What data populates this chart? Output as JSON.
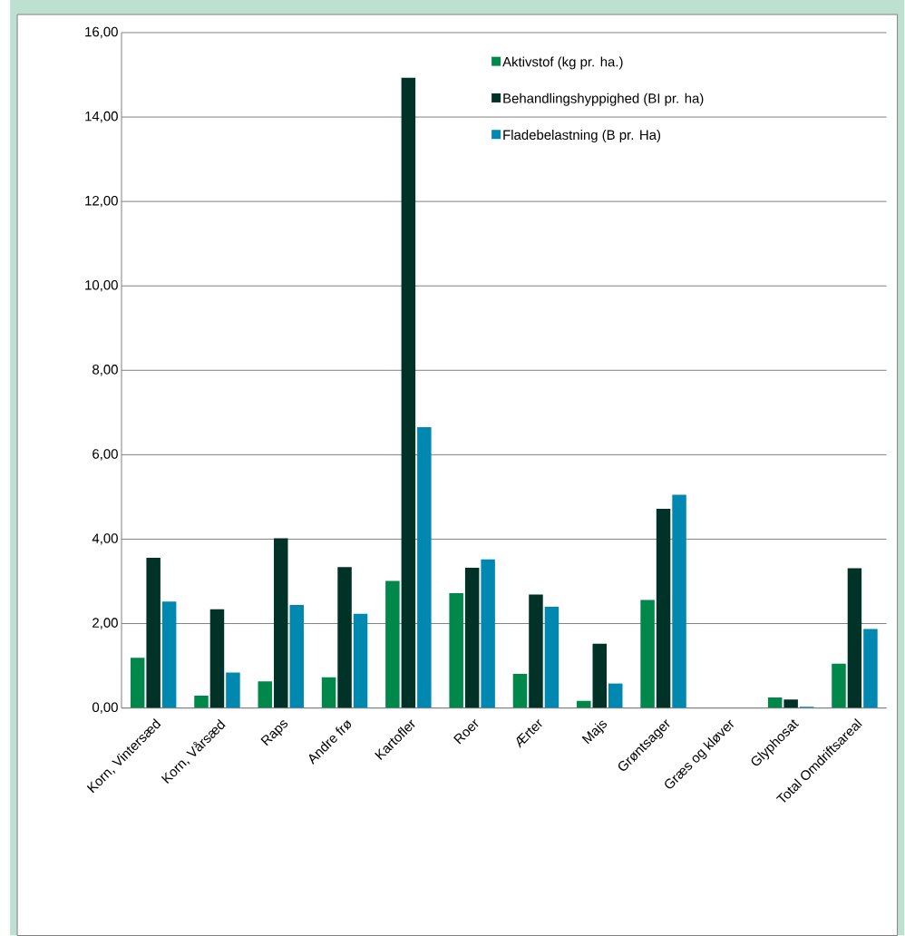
{
  "chart_data": {
    "type": "bar",
    "categories": [
      "Korn, Vintersæd",
      "Korn, Vårsæd",
      "Raps",
      "Andre frø",
      "Kartofler",
      "Roer",
      "Ærter",
      "Majs",
      "Grøntsager",
      "Græs og kløver",
      "Glyphosat",
      "Total Omdriftsareal"
    ],
    "series": [
      {
        "name": "Aktivstof (kg pr. ha.)",
        "color": "#00874a",
        "values": [
          1.19,
          0.29,
          0.63,
          0.73,
          3.01,
          2.72,
          0.81,
          0.17,
          2.56,
          0,
          0.25,
          1.05
        ]
      },
      {
        "name": "Behandlingshyppighed (BI pr. ha)",
        "color": "#003228",
        "values": [
          3.56,
          2.34,
          4.02,
          3.34,
          14.93,
          3.32,
          2.69,
          1.52,
          4.72,
          0,
          0.2,
          3.31
        ]
      },
      {
        "name": "Fladebelastning (B pr. Ha)",
        "color": "#0088b0",
        "values": [
          2.52,
          0.84,
          2.44,
          2.23,
          6.65,
          3.52,
          2.4,
          0.58,
          5.05,
          0,
          0.03,
          1.87
        ]
      }
    ],
    "ylim": [
      0,
      16
    ],
    "yticks": [
      {
        "value": 0,
        "label": "0,00"
      },
      {
        "value": 2,
        "label": "2,00"
      },
      {
        "value": 4,
        "label": "4,00"
      },
      {
        "value": 6,
        "label": "6,00"
      },
      {
        "value": 8,
        "label": "8,00"
      },
      {
        "value": 10,
        "label": "10,00"
      },
      {
        "value": 12,
        "label": "12,00"
      },
      {
        "value": 14,
        "label": "14,00"
      },
      {
        "value": 16,
        "label": "16,00"
      }
    ],
    "grid": "y",
    "legend": "top right"
  }
}
